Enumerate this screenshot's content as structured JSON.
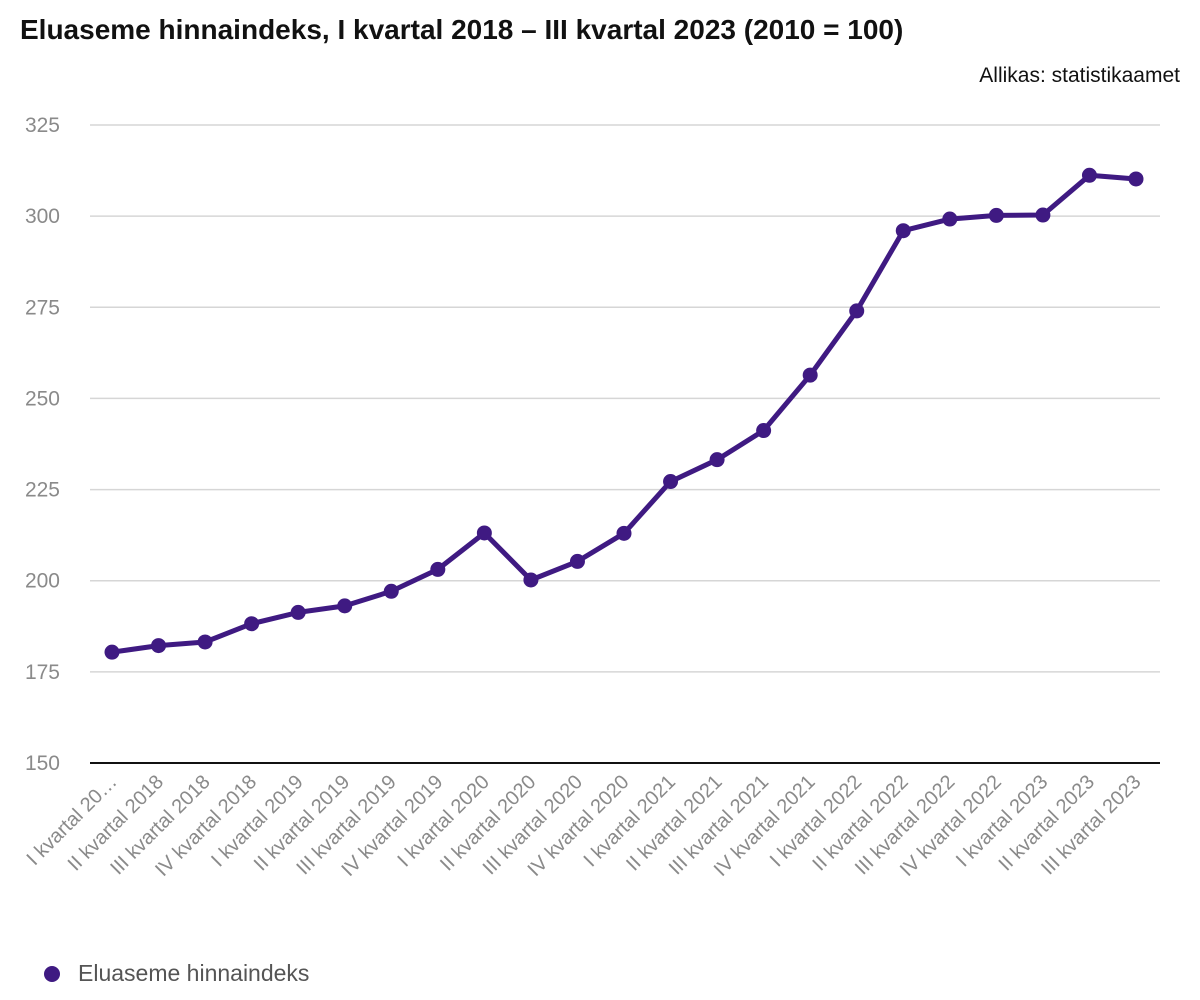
{
  "title": "Eluaseme hinnaindeks, I kvartal 2018 – III kvartal 2023 (2010 = 100)",
  "source": "Allikas: statistikaamet",
  "chart_data": {
    "type": "line",
    "categories": [
      "I kvartal 2018",
      "II kvartal 2018",
      "III kvartal 2018",
      "IV kvartal 2018",
      "I kvartal 2019",
      "II kvartal 2019",
      "III kvartal 2019",
      "IV kvartal 2019",
      "I kvartal 2020",
      "II kvartal 2020",
      "III kvartal 2020",
      "IV kvartal 2020",
      "I kvartal 2021",
      "II kvartal 2021",
      "III kvartal 2021",
      "IV kvartal 2021",
      "I kvartal 2022",
      "II kvartal 2022",
      "III kvartal 2022",
      "IV kvartal 2022",
      "I kvartal 2023",
      "II kvartal 2023",
      "III kvartal 2023"
    ],
    "x_tick_labels": [
      "I kvartal 20…",
      "II kvartal 2018",
      "III kvartal 2018",
      "IV kvartal 2018",
      "I kvartal 2019",
      "II kvartal 2019",
      "III kvartal 2019",
      "IV kvartal 2019",
      "I kvartal 2020",
      "II kvartal 2020",
      "III kvartal 2020",
      "IV kvartal 2020",
      "I kvartal 2021",
      "II kvartal 2021",
      "III kvartal 2021",
      "IV kvartal 2021",
      "I kvartal 2022",
      "II kvartal 2022",
      "III kvartal 2022",
      "IV kvartal 2022",
      "I kvartal 2023",
      "II kvartal 2023",
      "III kvartal 2023"
    ],
    "series": [
      {
        "name": "Eluaseme hinnaindeks",
        "color": "#3f1a82",
        "values": [
          180.4,
          182.2,
          183.2,
          188.2,
          191.3,
          193.1,
          197.1,
          203.1,
          213.1,
          200.2,
          205.3,
          213.0,
          227.2,
          233.2,
          241.2,
          256.4,
          274.0,
          296.0,
          299.2,
          300.2,
          300.3,
          311.2,
          310.2
        ]
      }
    ],
    "ylim": [
      150,
      325
    ],
    "yticks": [
      150,
      175,
      200,
      225,
      250,
      275,
      300,
      325
    ],
    "grid": true,
    "legend_position": "bottom-left"
  }
}
